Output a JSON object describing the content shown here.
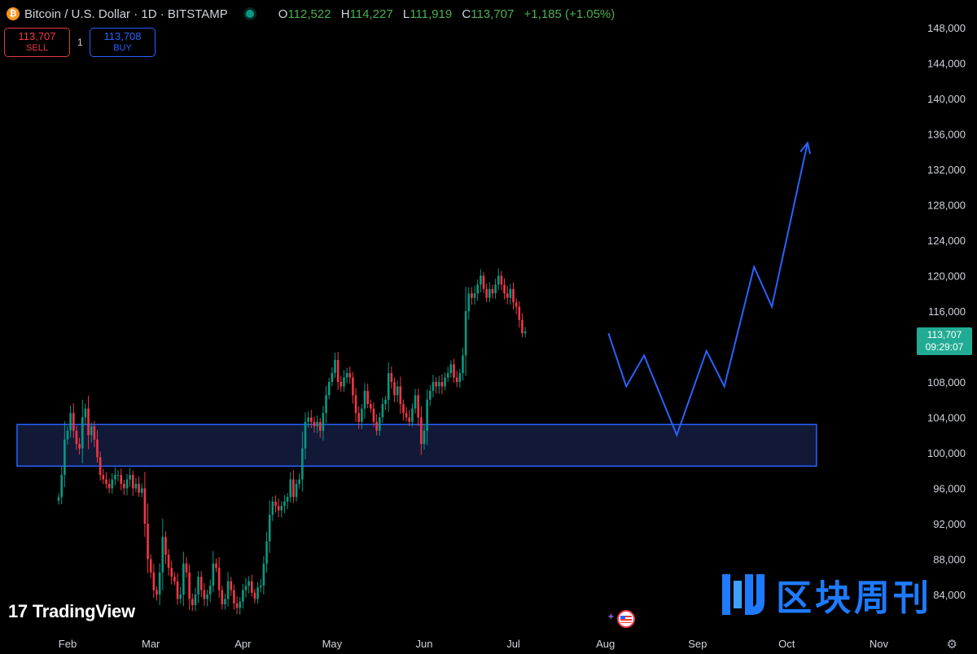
{
  "header": {
    "coin_icon": "bitcoin-icon",
    "coin_glyph": "₿",
    "title": "Bitcoin / U.S. Dollar · 1D · BITSTAMP",
    "status_color": "#089981",
    "ohlc": {
      "o_label": "O",
      "o": "112,522",
      "h_label": "H",
      "h": "114,227",
      "l_label": "L",
      "l": "111,919",
      "c_label": "C",
      "c": "113,707",
      "change": "+1,185 (+1.05%)"
    }
  },
  "trade": {
    "sell_price": "113,707",
    "sell_label": "SELL",
    "quantity": "1",
    "buy_price": "113,708",
    "buy_label": "BUY"
  },
  "price_tag": {
    "price": "113,707",
    "countdown": "09:29:07",
    "color": "#22ab94"
  },
  "branding": {
    "tv_mark": "17",
    "tv_name": "TradingView",
    "watermark_text": "区块周刊"
  },
  "colors": {
    "up": "#089981",
    "down": "#f23645",
    "drawing": "#2962ff",
    "zone_fill": "#131c3d"
  },
  "chart_data": {
    "type": "candlestick",
    "title": "Bitcoin / U.S. Dollar · 1D · BITSTAMP",
    "xlabel": "",
    "ylabel": "",
    "ylim": [
      82000,
      150000
    ],
    "y_ticks": [
      "148,000",
      "144,000",
      "140,000",
      "136,000",
      "132,000",
      "128,000",
      "124,000",
      "120,000",
      "116,000",
      "112,000",
      "108,000",
      "104,000",
      "100,000",
      "96,000",
      "92,000",
      "88,000",
      "84,000"
    ],
    "x_ticks": [
      "Feb",
      "Mar",
      "Apr",
      "May",
      "Jun",
      "Jul",
      "Aug",
      "Sep",
      "Oct",
      "Nov"
    ],
    "last_price": 113707,
    "series": [
      {
        "kind": "ohlc_daily",
        "closes": [
          95000,
          97500,
          101500,
          102500,
          104500,
          102500,
          101000,
          100500,
          104000,
          105000,
          102000,
          103000,
          101500,
          99500,
          97500,
          97000,
          96500,
          96000,
          97000,
          97500,
          97500,
          96500,
          96000,
          97000,
          97500,
          96000,
          96500,
          95500,
          96000,
          92000,
          88000,
          86500,
          84500,
          84000,
          86500,
          90500,
          88500,
          87000,
          86000,
          85500,
          83500,
          84000,
          87500,
          86500,
          83500,
          82800,
          84000,
          86000,
          84500,
          83500,
          84000,
          85000,
          87500,
          87000,
          84500,
          82900,
          83500,
          85500,
          84500,
          83000,
          82500,
          83200,
          84500,
          85000,
          85500,
          84200,
          83500,
          84800,
          85000,
          87500,
          90000,
          93000,
          94500,
          94000,
          93500,
          94000,
          94500,
          95000,
          97000,
          95000,
          96500,
          97000,
          100500,
          103500,
          104000,
          103500,
          103000,
          103500,
          102500,
          104500,
          106500,
          108000,
          109000,
          110500,
          108000,
          107500,
          108500,
          109000,
          108500,
          106500,
          104500,
          103500,
          105000,
          107000,
          105500,
          105000,
          103500,
          102500,
          104000,
          105500,
          106000,
          109000,
          108000,
          106500,
          107500,
          105500,
          104500,
          104000,
          103500,
          105000,
          106500,
          104000,
          101000,
          102500,
          106000,
          107000,
          108000,
          107500,
          108000,
          107500,
          108500,
          109000,
          110000,
          108500,
          108000,
          109000,
          111000,
          116000,
          118000,
          117500,
          118000,
          119000,
          120000,
          118500,
          117500,
          118500,
          118000,
          119000,
          120000,
          119000,
          118000,
          117500,
          118500,
          117000,
          116500,
          115000,
          113500,
          113707
        ]
      },
      {
        "kind": "projection",
        "x": [
          "Aug 2",
          "Aug 8",
          "Aug 14",
          "Aug 25",
          "Sep 4",
          "Sep 10",
          "Sep 20",
          "Sep 26",
          "Oct 8"
        ],
        "y": [
          113500,
          107500,
          111000,
          102000,
          111500,
          107500,
          121000,
          116500,
          135000
        ]
      },
      {
        "kind": "zone",
        "x": [
          "Jan 15",
          "Oct 11"
        ],
        "y": [
          98500,
          103200
        ]
      }
    ]
  }
}
